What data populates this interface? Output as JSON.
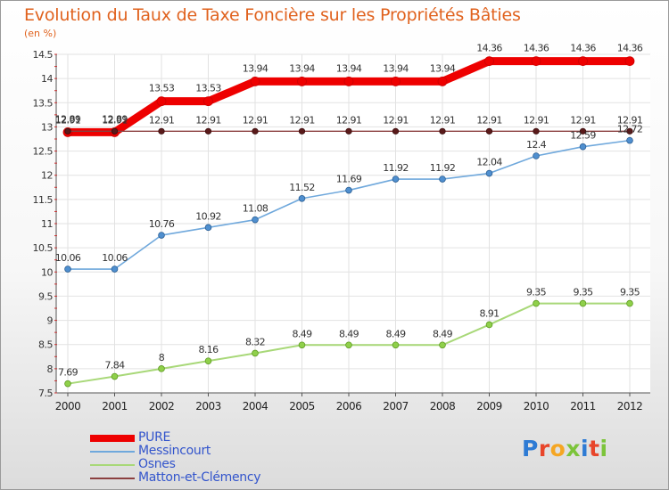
{
  "header": {
    "title": "Evolution du Taux de Taxe Foncière sur les Propriétés Bâties",
    "unit": "(en %)"
  },
  "brand": {
    "letters": [
      "P",
      "r",
      "o",
      "x",
      "i",
      "t",
      "i"
    ],
    "colors": [
      "#2e7bd4",
      "#e8452a",
      "#f5a623",
      "#7cc43a",
      "#2e7bd4",
      "#e8452a",
      "#7cc43a"
    ]
  },
  "chart_data": {
    "type": "line",
    "title": "Evolution du Taux de Taxe Foncière sur les Propriétés Bâties",
    "ylabel": "(en %)",
    "xlabel": "",
    "x": [
      "2000",
      "2001",
      "2002",
      "2003",
      "2004",
      "2005",
      "2006",
      "2007",
      "2008",
      "2009",
      "2010",
      "2011",
      "2012"
    ],
    "ylim": [
      7.5,
      14.5
    ],
    "yticks": [
      7.5,
      8,
      8.5,
      9,
      9.5,
      10,
      10.5,
      11,
      11.5,
      12,
      12.5,
      13,
      13.5,
      14,
      14.5
    ],
    "ytick_labels": [
      "7.5",
      "8",
      "8.5",
      "9",
      "9.5",
      "10",
      "10.5",
      "11",
      "11.5",
      "12",
      "12.5",
      "13",
      "13.5",
      "14",
      "14.5"
    ],
    "grid": true,
    "legend_position": "bottom-left",
    "series": [
      {
        "name": "PURE",
        "color": "#ee0000",
        "values": [
          12.89,
          12.89,
          13.53,
          13.53,
          13.94,
          13.94,
          13.94,
          13.94,
          13.94,
          14.36,
          14.36,
          14.36,
          14.36
        ],
        "labels": [
          "12.89",
          "12.89",
          "13.53",
          "13.53",
          "13.94",
          "13.94",
          "13.94",
          "13.94",
          "13.94",
          "14.36",
          "14.36",
          "14.36",
          "14.36"
        ]
      },
      {
        "name": "Messincourt",
        "color": "#6fa8dc",
        "values": [
          10.06,
          10.06,
          10.76,
          10.92,
          11.08,
          11.52,
          11.69,
          11.92,
          11.92,
          12.04,
          12.4,
          12.59,
          12.72
        ],
        "labels": [
          "10.06",
          "10.06",
          "10.76",
          "10.92",
          "11.08",
          "11.52",
          "11.69",
          "11.92",
          "11.92",
          "12.04",
          "12.4",
          "12.59",
          "12.72"
        ]
      },
      {
        "name": "Osnes",
        "color": "#a8d878",
        "values": [
          7.69,
          7.84,
          8,
          8.16,
          8.32,
          8.49,
          8.49,
          8.49,
          8.49,
          8.91,
          9.35,
          9.35,
          9.35
        ],
        "labels": [
          "7.69",
          "7.84",
          "8",
          "8.16",
          "8.32",
          "8.49",
          "8.49",
          "8.49",
          "8.49",
          "8.91",
          "9.35",
          "9.35",
          "9.35"
        ]
      },
      {
        "name": "Matton-et-Clémency",
        "color": "#8b4040",
        "values": [
          12.91,
          12.91,
          12.91,
          12.91,
          12.91,
          12.91,
          12.91,
          12.91,
          12.91,
          12.91,
          12.91,
          12.91,
          12.91
        ],
        "labels": [
          "12.91",
          "12.91",
          "12.91",
          "12.91",
          "12.91",
          "12.91",
          "12.91",
          "12.91",
          "12.91",
          "12.91",
          "12.91",
          "12.91",
          "12.91"
        ]
      }
    ]
  }
}
